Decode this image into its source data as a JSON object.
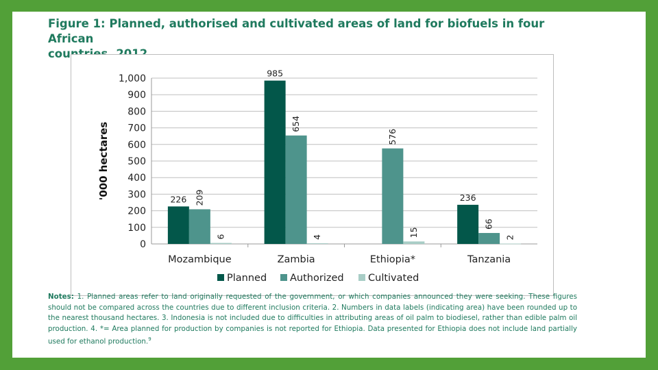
{
  "title_lines": [
    "Figure 1: Planned, authorised and cultivated areas of land for biofuels in four African",
    "countries, 2012"
  ],
  "chart_data": {
    "type": "bar",
    "ylabel": "'000 hectares",
    "ylim": [
      0,
      1000
    ],
    "yticks": [
      0,
      100,
      200,
      300,
      400,
      500,
      600,
      700,
      800,
      900,
      1000
    ],
    "ytick_labels": [
      "0",
      "100",
      "200",
      "300",
      "400",
      "500",
      "600",
      "700",
      "800",
      "900",
      "1,000"
    ],
    "grid": true,
    "legend_position": "bottom",
    "categories": [
      "Mozambique",
      "Zambia",
      "Ethiopia*",
      "Tanzania"
    ],
    "series": [
      {
        "name": "Planned",
        "color": "#03574a",
        "values": [
          226,
          985,
          null,
          236
        ],
        "labels": [
          "226",
          "985",
          "",
          "236"
        ]
      },
      {
        "name": "Authorized",
        "color": "#4e948c",
        "values": [
          209,
          654,
          576,
          66
        ],
        "labels": [
          "209",
          "654",
          "576",
          "66"
        ]
      },
      {
        "name": "Cultivated",
        "color": "#a8cdc6",
        "values": [
          6,
          4,
          15,
          2
        ],
        "labels": [
          "6",
          "4",
          "15",
          "2"
        ]
      }
    ]
  },
  "notes": {
    "label": "Notes:",
    "text": " 1. Planned areas refer to land originally requested of the government, or which companies announced they were seeking. These figures should not be compared across the countries due to different inclusion criteria. 2. Numbers in data labels (indicating area) have been rounded up to the nearest thousand hectares. 3. Indonesia is not included due to difficulties in attributing areas of oil palm to biodiesel, rather than edible palm oil production. 4. *= Area planned for production by companies is not reported for Ethiopia. Data presented for Ethiopia does not include land partially used for ethanol production.",
    "superscript": "9"
  },
  "colors": {
    "background": "#52a038",
    "text": "#1f7a5e",
    "grid": "#bfbfbf"
  }
}
